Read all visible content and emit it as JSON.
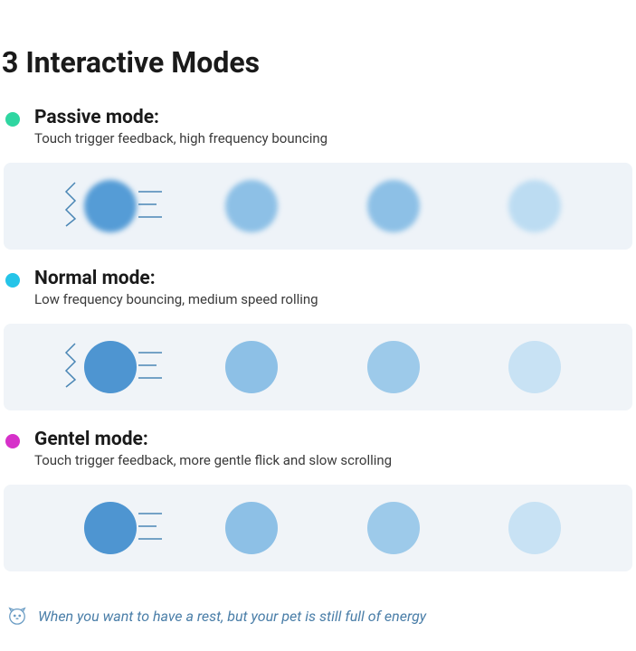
{
  "title": "3 Interactive Modes",
  "modes": [
    {
      "dot_color": "#2fd6a1",
      "title": "Passive mode:",
      "desc": "Touch trigger feedback, high frequency bouncing",
      "blur": true,
      "zig": true,
      "strip_bg": "#eef3f8",
      "ball_colors": [
        "#559cd6",
        "#8dc0e6",
        "#8dc0e6",
        "#bcdcf2"
      ],
      "line_color": "#4a86b5"
    },
    {
      "dot_color": "#25c4e8",
      "title": "Normal mode:",
      "desc": "Low frequency bouncing, medium speed rolling",
      "blur": false,
      "zig": true,
      "strip_bg": "#f0f4f8",
      "ball_colors": [
        "#4e95d1",
        "#8dc0e6",
        "#9dcaea",
        "#c8e2f4"
      ],
      "line_color": "#4a86b5"
    },
    {
      "dot_color": "#d631c9",
      "title": "Gentel mode:",
      "desc": "Touch trigger feedback, more gentle flick and slow scrolling",
      "blur": false,
      "zig": false,
      "strip_bg": "#f0f4f8",
      "ball_colors": [
        "#4e95d1",
        "#8dc0e6",
        "#9dcaea",
        "#c8e2f4"
      ],
      "line_color": "#4a86b5"
    }
  ],
  "footer_text": "When you want to have a rest, but your pet is still full of energy",
  "footer_color": "#4a7ea8"
}
